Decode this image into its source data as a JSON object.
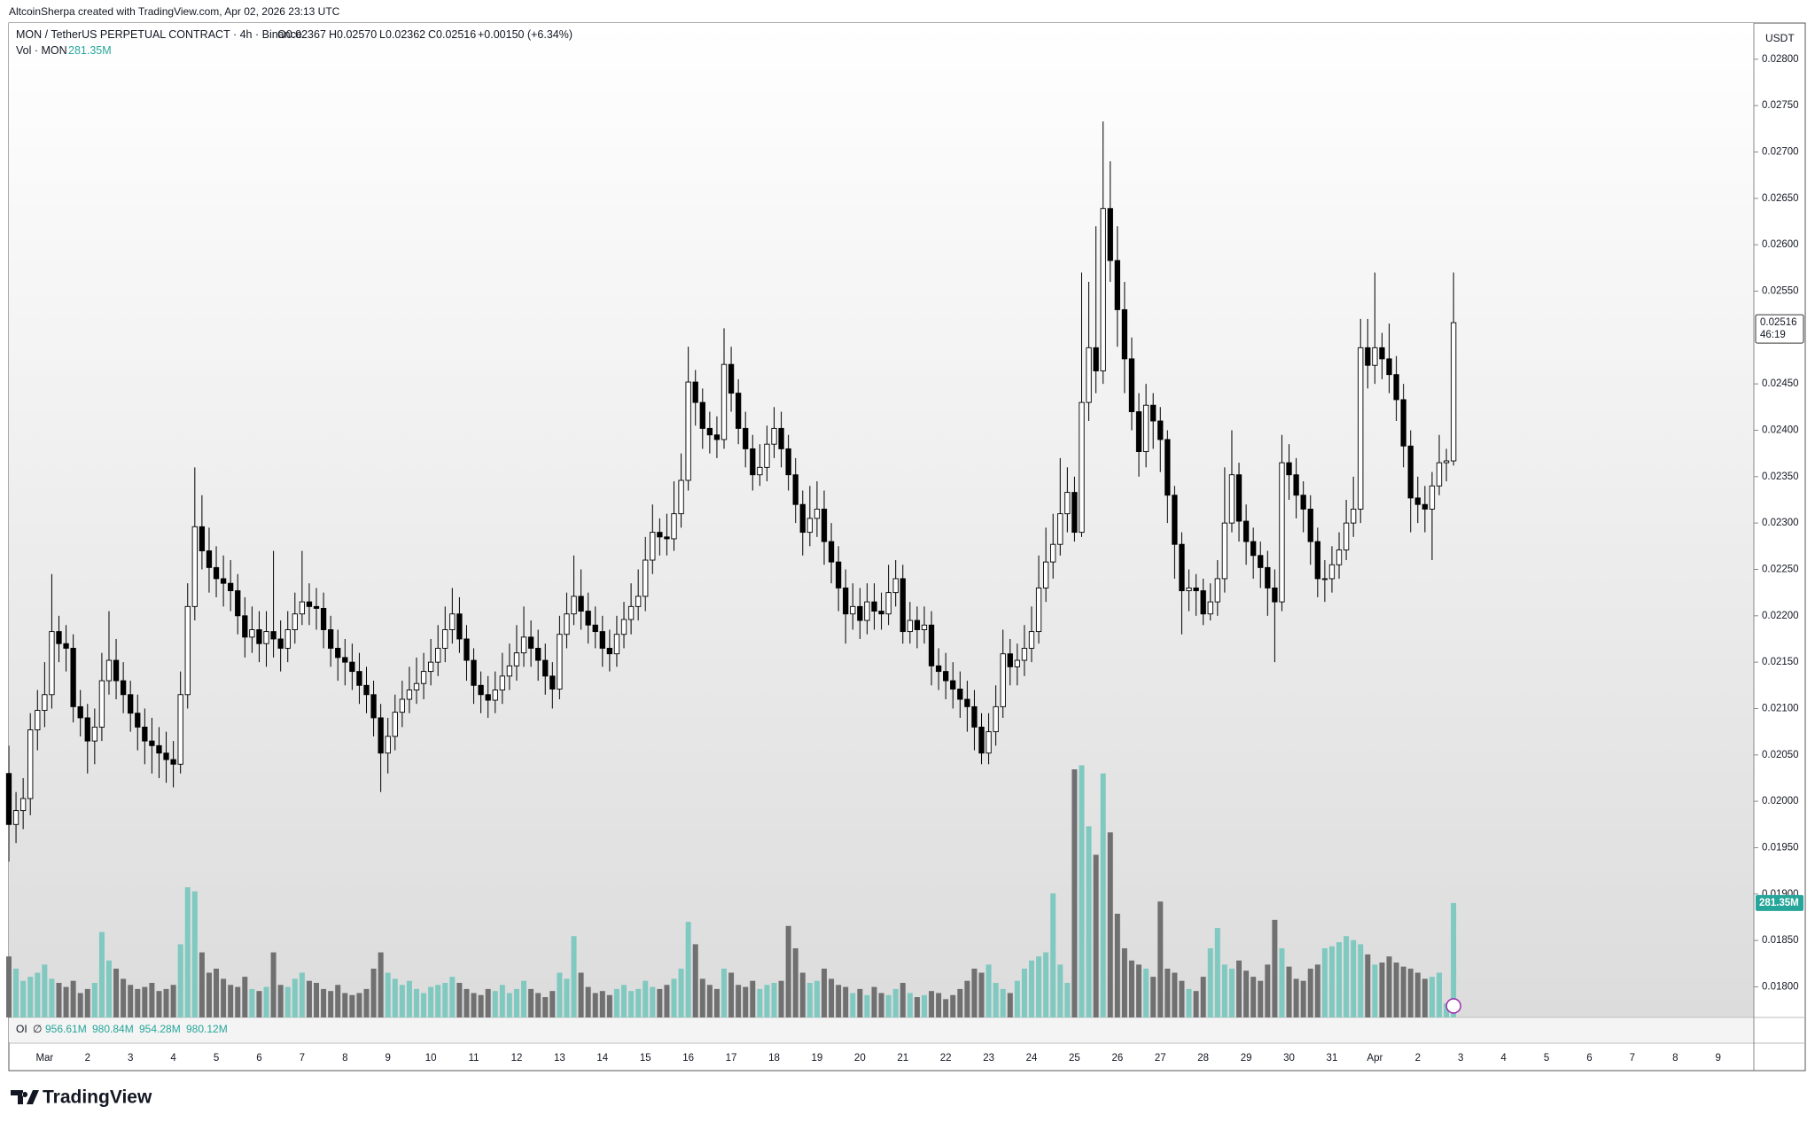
{
  "header": {
    "credit": "AltcoinSherpa created with TradingView.com, Apr 02, 2026 23:13 UTC",
    "symbol": "MON / TetherUS PERPETUAL CONTRACT · 4h · Binance",
    "ohlc": [
      "O0.02367",
      "H0.02570",
      "L0.02362",
      "C0.02516",
      "+0.00150 (+6.34%)"
    ],
    "vol_title": "Vol · MON",
    "vol_value": "281.35M",
    "oi_title": "OI",
    "oi_symbol": "∅",
    "oi_values": [
      "956.61M",
      "980.84M",
      "954.28M",
      "980.12M"
    ],
    "currency": "USDT",
    "last_price": "0.02516",
    "countdown": "46:19",
    "volume_axis_label": "281.35M"
  },
  "chart_data": {
    "type": "candlestick",
    "open": [
      0.0203,
      0.01975,
      0.0199,
      0.02003,
      0.02077,
      0.02098,
      0.02115,
      0.02183,
      0.0217,
      0.02165,
      0.02102,
      0.0209,
      0.02065,
      0.0208,
      0.0213,
      0.02152,
      0.0213,
      0.02115,
      0.02095,
      0.0208,
      0.02065,
      0.0206,
      0.02052,
      0.02045,
      0.0204,
      0.02115,
      0.0221,
      0.02296,
      0.0227,
      0.02252,
      0.0224,
      0.02235,
      0.02227,
      0.022,
      0.02177,
      0.02185,
      0.0217,
      0.02183,
      0.02175,
      0.02165,
      0.02185,
      0.02202,
      0.02215,
      0.0221,
      0.02208,
      0.02185,
      0.02165,
      0.02155,
      0.0215,
      0.0214,
      0.02125,
      0.02115,
      0.0209,
      0.02052,
      0.0207,
      0.02096,
      0.0211,
      0.0212,
      0.02127,
      0.0214,
      0.0215,
      0.02165,
      0.02185,
      0.02202,
      0.02175,
      0.02152,
      0.02125,
      0.02115,
      0.02109,
      0.0212,
      0.02135,
      0.02146,
      0.0216,
      0.02177,
      0.02165,
      0.02152,
      0.02135,
      0.02121,
      0.0218,
      0.02202,
      0.02221,
      0.02205,
      0.0219,
      0.02183,
      0.02165,
      0.02159,
      0.0218,
      0.02196,
      0.0221,
      0.02221,
      0.0226,
      0.0229,
      0.02285,
      0.02283,
      0.0231,
      0.02346,
      0.02452,
      0.0243,
      0.02402,
      0.02395,
      0.0239,
      0.02471,
      0.0244,
      0.02402,
      0.0238,
      0.02352,
      0.0236,
      0.02385,
      0.02402,
      0.0238,
      0.02352,
      0.0232,
      0.0229,
      0.02305,
      0.02315,
      0.0228,
      0.02258,
      0.0223,
      0.02202,
      0.0221,
      0.02195,
      0.02215,
      0.02205,
      0.02202,
      0.02225,
      0.0224,
      0.02183,
      0.02195,
      0.02185,
      0.0219,
      0.02146,
      0.0214,
      0.0213,
      0.02121,
      0.0211,
      0.02102,
      0.0208,
      0.02052,
      0.02075,
      0.02102,
      0.02159,
      0.02145,
      0.02152,
      0.02165,
      0.02183,
      0.0223,
      0.02258,
      0.02277,
      0.0231,
      0.02333,
      0.0229,
      0.0243,
      0.02489,
      0.02464,
      0.02639,
      0.02583,
      0.0253,
      0.02477,
      0.0242,
      0.02377,
      0.02427,
      0.0241,
      0.0239,
      0.0233,
      0.02277,
      0.02227,
      0.0223,
      0.02227,
      0.02202,
      0.02215,
      0.0224,
      0.023,
      0.02352,
      0.02302,
      0.0228,
      0.02265,
      0.02252,
      0.0223,
      0.02215,
      0.02365,
      0.02352,
      0.0233,
      0.02315,
      0.0228,
      0.0224,
      0.0224,
      0.02255,
      0.02271,
      0.023,
      0.02315,
      0.02489,
      0.0247,
      0.02489,
      0.02477,
      0.0246,
      0.02433,
      0.02383,
      0.02327,
      0.0232,
      0.02315,
      0.0234,
      0.02365,
      0.02367
    ],
    "high": [
      0.0206,
      0.0201,
      0.02025,
      0.02095,
      0.0212,
      0.0215,
      0.02245,
      0.022,
      0.0219,
      0.0218,
      0.0212,
      0.02105,
      0.021,
      0.0216,
      0.02205,
      0.02175,
      0.0215,
      0.0213,
      0.02115,
      0.021,
      0.0209,
      0.0208,
      0.02075,
      0.02065,
      0.0214,
      0.02235,
      0.0236,
      0.0233,
      0.02295,
      0.02275,
      0.02265,
      0.0226,
      0.02245,
      0.0222,
      0.0221,
      0.02205,
      0.02205,
      0.0227,
      0.02195,
      0.02205,
      0.02225,
      0.0227,
      0.02235,
      0.0223,
      0.02225,
      0.022,
      0.02185,
      0.02175,
      0.0217,
      0.0216,
      0.02145,
      0.0213,
      0.02105,
      0.0209,
      0.02115,
      0.0213,
      0.02145,
      0.02155,
      0.0216,
      0.02175,
      0.0219,
      0.0221,
      0.0223,
      0.0222,
      0.0219,
      0.02165,
      0.0214,
      0.02135,
      0.0214,
      0.0216,
      0.0217,
      0.0219,
      0.0221,
      0.02195,
      0.02185,
      0.0217,
      0.0215,
      0.022,
      0.02225,
      0.02265,
      0.0225,
      0.02225,
      0.0221,
      0.022,
      0.02185,
      0.022,
      0.02215,
      0.02235,
      0.0225,
      0.02285,
      0.0232,
      0.02305,
      0.0231,
      0.02345,
      0.02375,
      0.0249,
      0.02465,
      0.02445,
      0.0242,
      0.02415,
      0.0251,
      0.0249,
      0.02455,
      0.0242,
      0.02395,
      0.02385,
      0.02405,
      0.02425,
      0.0242,
      0.02395,
      0.0237,
      0.02335,
      0.0234,
      0.02345,
      0.02335,
      0.023,
      0.02275,
      0.0225,
      0.02235,
      0.0223,
      0.02235,
      0.02235,
      0.02225,
      0.02255,
      0.0226,
      0.02255,
      0.02215,
      0.0221,
      0.0221,
      0.02205,
      0.02165,
      0.0216,
      0.0215,
      0.0214,
      0.0213,
      0.0212,
      0.02095,
      0.02095,
      0.02125,
      0.02185,
      0.02175,
      0.0217,
      0.0219,
      0.0221,
      0.02265,
      0.02295,
      0.0231,
      0.0237,
      0.0236,
      0.0235,
      0.0257,
      0.0256,
      0.0262,
      0.02733,
      0.0269,
      0.0262,
      0.0256,
      0.025,
      0.0244,
      0.0245,
      0.0244,
      0.02425,
      0.024,
      0.0234,
      0.0229,
      0.0225,
      0.02245,
      0.0224,
      0.02235,
      0.0226,
      0.0236,
      0.024,
      0.02365,
      0.0232,
      0.02295,
      0.0228,
      0.0227,
      0.0225,
      0.02395,
      0.02385,
      0.0237,
      0.02345,
      0.0233,
      0.02295,
      0.0226,
      0.02275,
      0.0229,
      0.02325,
      0.0235,
      0.0252,
      0.0252,
      0.0257,
      0.02505,
      0.02515,
      0.0248,
      0.0245,
      0.024,
      0.0235,
      0.0234,
      0.02355,
      0.02395,
      0.0238,
      0.0257
    ],
    "low": [
      0.01935,
      0.01955,
      0.0197,
      0.01985,
      0.02055,
      0.0208,
      0.021,
      0.0215,
      0.0214,
      0.02085,
      0.0207,
      0.0203,
      0.0204,
      0.02065,
      0.02115,
      0.0211,
      0.02095,
      0.02075,
      0.02055,
      0.0204,
      0.0203,
      0.02025,
      0.0202,
      0.02015,
      0.0203,
      0.021,
      0.02195,
      0.0225,
      0.02225,
      0.0222,
      0.0221,
      0.02205,
      0.0218,
      0.02155,
      0.0216,
      0.0215,
      0.02145,
      0.02155,
      0.0214,
      0.0215,
      0.0217,
      0.0219,
      0.0219,
      0.02185,
      0.02165,
      0.02145,
      0.0213,
      0.02125,
      0.0212,
      0.02105,
      0.02095,
      0.0207,
      0.0201,
      0.0203,
      0.02055,
      0.0208,
      0.02095,
      0.02105,
      0.0211,
      0.02125,
      0.02135,
      0.0215,
      0.0217,
      0.0216,
      0.0213,
      0.02105,
      0.02095,
      0.0209,
      0.02095,
      0.02105,
      0.0212,
      0.0213,
      0.02145,
      0.02145,
      0.0213,
      0.02115,
      0.021,
      0.0211,
      0.02165,
      0.0219,
      0.02185,
      0.0217,
      0.02165,
      0.02145,
      0.0214,
      0.02145,
      0.02165,
      0.0218,
      0.02195,
      0.02205,
      0.02245,
      0.02265,
      0.02265,
      0.0227,
      0.02295,
      0.02335,
      0.02405,
      0.0238,
      0.02375,
      0.0237,
      0.0238,
      0.0242,
      0.02385,
      0.0236,
      0.02335,
      0.0234,
      0.02345,
      0.0237,
      0.0236,
      0.02335,
      0.023,
      0.02265,
      0.02275,
      0.02285,
      0.02255,
      0.02235,
      0.02205,
      0.0217,
      0.02185,
      0.02175,
      0.0218,
      0.02185,
      0.02185,
      0.0219,
      0.0221,
      0.0217,
      0.0217,
      0.02165,
      0.0217,
      0.02125,
      0.0212,
      0.0211,
      0.021,
      0.0209,
      0.02075,
      0.02055,
      0.0204,
      0.0204,
      0.0206,
      0.0209,
      0.02125,
      0.02125,
      0.02135,
      0.0215,
      0.0217,
      0.02215,
      0.0224,
      0.02265,
      0.0229,
      0.0228,
      0.02285,
      0.0241,
      0.0244,
      0.0245,
      0.0256,
      0.0249,
      0.0244,
      0.024,
      0.0235,
      0.0236,
      0.0238,
      0.02355,
      0.023,
      0.0224,
      0.0218,
      0.02205,
      0.022,
      0.0219,
      0.02195,
      0.022,
      0.02225,
      0.0229,
      0.0228,
      0.02255,
      0.0224,
      0.0223,
      0.022,
      0.0215,
      0.02205,
      0.02325,
      0.02305,
      0.0229,
      0.02255,
      0.0222,
      0.02215,
      0.02225,
      0.0224,
      0.0226,
      0.02285,
      0.023,
      0.02445,
      0.0245,
      0.02455,
      0.0244,
      0.0241,
      0.0236,
      0.0229,
      0.023,
      0.0229,
      0.0226,
      0.0233,
      0.02345,
      0.02362
    ],
    "close": [
      0.01975,
      0.0199,
      0.02003,
      0.02077,
      0.02098,
      0.02115,
      0.02183,
      0.0217,
      0.02165,
      0.02102,
      0.0209,
      0.02065,
      0.0208,
      0.0213,
      0.02152,
      0.0213,
      0.02115,
      0.02095,
      0.0208,
      0.02065,
      0.0206,
      0.02052,
      0.02045,
      0.0204,
      0.02115,
      0.0221,
      0.02296,
      0.0227,
      0.02252,
      0.0224,
      0.02235,
      0.02227,
      0.022,
      0.02177,
      0.02185,
      0.0217,
      0.02183,
      0.02175,
      0.02165,
      0.02185,
      0.02202,
      0.02215,
      0.0221,
      0.02208,
      0.02185,
      0.02165,
      0.02155,
      0.0215,
      0.0214,
      0.02125,
      0.02115,
      0.0209,
      0.02052,
      0.0207,
      0.02096,
      0.0211,
      0.0212,
      0.02127,
      0.0214,
      0.0215,
      0.02165,
      0.02185,
      0.02202,
      0.02175,
      0.02152,
      0.02125,
      0.02115,
      0.02109,
      0.0212,
      0.02135,
      0.02146,
      0.0216,
      0.02177,
      0.02165,
      0.02152,
      0.02135,
      0.02121,
      0.0218,
      0.02202,
      0.02221,
      0.02205,
      0.0219,
      0.02183,
      0.02165,
      0.02159,
      0.0218,
      0.02196,
      0.0221,
      0.02221,
      0.0226,
      0.0229,
      0.02285,
      0.02283,
      0.0231,
      0.02346,
      0.02452,
      0.0243,
      0.02402,
      0.02395,
      0.0239,
      0.02471,
      0.0244,
      0.02402,
      0.0238,
      0.02352,
      0.0236,
      0.02385,
      0.02402,
      0.0238,
      0.02352,
      0.0232,
      0.0229,
      0.02305,
      0.02315,
      0.0228,
      0.02258,
      0.0223,
      0.02202,
      0.0221,
      0.02195,
      0.02215,
      0.02205,
      0.02202,
      0.02225,
      0.0224,
      0.02183,
      0.02195,
      0.02185,
      0.0219,
      0.02146,
      0.0214,
      0.0213,
      0.02121,
      0.0211,
      0.02102,
      0.0208,
      0.02052,
      0.02075,
      0.02102,
      0.02159,
      0.02145,
      0.02152,
      0.02165,
      0.02183,
      0.0223,
      0.02258,
      0.02277,
      0.0231,
      0.02333,
      0.0229,
      0.0243,
      0.02489,
      0.02464,
      0.02639,
      0.02583,
      0.0253,
      0.02477,
      0.0242,
      0.02377,
      0.02427,
      0.0241,
      0.0239,
      0.0233,
      0.02277,
      0.02227,
      0.0223,
      0.02227,
      0.02202,
      0.02215,
      0.0224,
      0.023,
      0.02352,
      0.02302,
      0.0228,
      0.02265,
      0.02252,
      0.0223,
      0.02215,
      0.02365,
      0.02352,
      0.0233,
      0.02315,
      0.0228,
      0.0224,
      0.0224,
      0.02255,
      0.02271,
      0.023,
      0.02315,
      0.02489,
      0.0247,
      0.02489,
      0.02477,
      0.0246,
      0.02433,
      0.02383,
      0.02327,
      0.0232,
      0.02315,
      0.0234,
      0.02365,
      0.02367,
      0.02516
    ],
    "volume": [
      150,
      120,
      90,
      100,
      110,
      130,
      95,
      85,
      75,
      90,
      60,
      70,
      85,
      210,
      140,
      120,
      95,
      80,
      70,
      75,
      85,
      65,
      70,
      80,
      180,
      320,
      310,
      160,
      110,
      120,
      95,
      80,
      75,
      100,
      70,
      65,
      75,
      160,
      80,
      75,
      95,
      110,
      90,
      85,
      70,
      65,
      80,
      60,
      55,
      60,
      70,
      120,
      160,
      110,
      95,
      80,
      90,
      70,
      60,
      75,
      80,
      85,
      100,
      85,
      70,
      60,
      55,
      70,
      65,
      80,
      60,
      70,
      90,
      70,
      60,
      50,
      65,
      110,
      95,
      200,
      110,
      75,
      60,
      65,
      55,
      70,
      80,
      65,
      70,
      90,
      75,
      70,
      80,
      95,
      120,
      235,
      180,
      95,
      80,
      70,
      120,
      110,
      80,
      75,
      90,
      70,
      80,
      85,
      90,
      225,
      170,
      110,
      85,
      90,
      120,
      95,
      80,
      75,
      60,
      70,
      55,
      75,
      60,
      55,
      70,
      85,
      60,
      50,
      55,
      65,
      60,
      45,
      55,
      70,
      90,
      120,
      110,
      130,
      85,
      70,
      60,
      90,
      120,
      140,
      150,
      160,
      305,
      130,
      85,
      610,
      620,
      470,
      400,
      600,
      455,
      255,
      170,
      140,
      130,
      120,
      100,
      285,
      120,
      110,
      90,
      70,
      65,
      100,
      170,
      220,
      130,
      120,
      140,
      115,
      100,
      90,
      130,
      240,
      170,
      125,
      95,
      90,
      120,
      130,
      170,
      175,
      185,
      200,
      190,
      180,
      155,
      130,
      135,
      150,
      135,
      125,
      120,
      110,
      95,
      100,
      110,
      35,
      281.35
    ],
    "ylim": [
      0.01767,
      0.02839
    ],
    "yticks": [
      {
        "value": 0.018,
        "label": "0.01800"
      },
      {
        "value": 0.0185,
        "label": "0.01850"
      },
      {
        "value": 0.019,
        "label": "0.01900"
      },
      {
        "value": 0.0195,
        "label": "0.01950"
      },
      {
        "value": 0.02,
        "label": "0.02000"
      },
      {
        "value": 0.0205,
        "label": "0.02050"
      },
      {
        "value": 0.021,
        "label": "0.02100"
      },
      {
        "value": 0.0215,
        "label": "0.02150"
      },
      {
        "value": 0.022,
        "label": "0.02200"
      },
      {
        "value": 0.0225,
        "label": "0.02250"
      },
      {
        "value": 0.023,
        "label": "0.02300"
      },
      {
        "value": 0.0235,
        "label": "0.02350"
      },
      {
        "value": 0.024,
        "label": "0.02400"
      },
      {
        "value": 0.0245,
        "label": "0.02450"
      },
      {
        "value": 0.0255,
        "label": "0.02550"
      },
      {
        "value": 0.026,
        "label": "0.02600"
      },
      {
        "value": 0.0265,
        "label": "0.02650"
      },
      {
        "value": 0.027,
        "label": "0.02700"
      },
      {
        "value": 0.0275,
        "label": "0.02750"
      },
      {
        "value": 0.028,
        "label": "0.02800"
      }
    ],
    "volume_ylim": [
      0,
      2445
    ],
    "x_labels": [
      "Mar",
      "2",
      "3",
      "4",
      "5",
      "6",
      "7",
      "8",
      "9",
      "10",
      "11",
      "12",
      "13",
      "14",
      "15",
      "16",
      "17",
      "18",
      "19",
      "20",
      "21",
      "22",
      "23",
      "24",
      "25",
      "26",
      "27",
      "28",
      "29",
      "30",
      "31",
      "Apr",
      "2",
      "3",
      "4",
      "5",
      "6",
      "7",
      "8",
      "9"
    ],
    "up_color": "#ffffff",
    "down_color": "#000000",
    "volume_up_color": "#80c9c0",
    "volume_down_color": "#707070"
  },
  "footer": {
    "brand": "TradingView"
  }
}
